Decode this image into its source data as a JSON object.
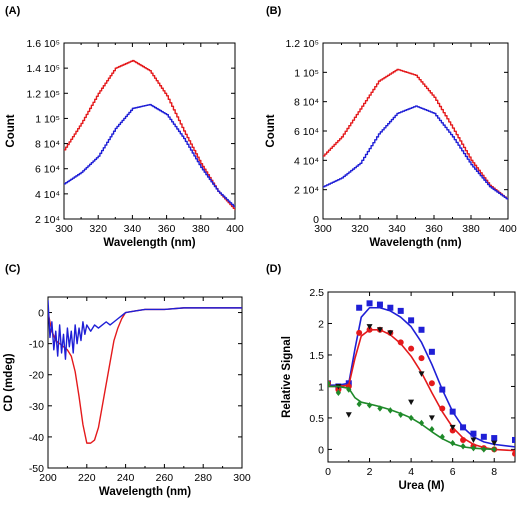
{
  "chart_data": [
    {
      "panel": "(A)",
      "type": "line",
      "xlabel": "Wavelength (nm)",
      "ylabel": "Count",
      "xlim": [
        300,
        400
      ],
      "ylim": [
        20000,
        160000
      ],
      "x_ticks": [
        300,
        320,
        340,
        360,
        380,
        400
      ],
      "y_ticks": [
        {
          "value": 20000,
          "label": "2 10⁴"
        },
        {
          "value": 40000,
          "label": "4 10⁴"
        },
        {
          "value": 60000,
          "label": "6 10⁴"
        },
        {
          "value": 80000,
          "label": "8 10⁴"
        },
        {
          "value": 100000,
          "label": "1 10⁵"
        },
        {
          "value": 120000,
          "label": "1.2 10⁵"
        },
        {
          "value": 140000,
          "label": "1.4 10⁵"
        },
        {
          "value": 160000,
          "label": "1.6 10⁵"
        }
      ],
      "grid": false,
      "series": [
        {
          "color": "#e41a1c",
          "x": [
            300,
            310,
            320,
            330,
            340,
            350,
            360,
            370,
            380,
            390,
            400
          ],
          "y": [
            75000,
            96000,
            120000,
            140000,
            146000,
            138000,
            118000,
            90000,
            64000,
            42000,
            27000
          ]
        },
        {
          "color": "#1f1fd6",
          "x": [
            300,
            310,
            320,
            330,
            340,
            350,
            360,
            370,
            380,
            390,
            400
          ],
          "y": [
            48000,
            57000,
            70000,
            92000,
            108000,
            111000,
            103000,
            84000,
            61000,
            42000,
            29000
          ]
        }
      ]
    },
    {
      "panel": "(B)",
      "type": "line",
      "xlabel": "Wavelength (nm)",
      "ylabel": "Count",
      "xlim": [
        300,
        400
      ],
      "ylim": [
        0,
        120000
      ],
      "x_ticks": [
        300,
        320,
        340,
        360,
        380,
        400
      ],
      "y_ticks": [
        {
          "value": 0,
          "label": "0"
        },
        {
          "value": 20000,
          "label": "2 10⁴"
        },
        {
          "value": 40000,
          "label": "4 10⁴"
        },
        {
          "value": 60000,
          "label": "6 10⁴"
        },
        {
          "value": 80000,
          "label": "8 10⁴"
        },
        {
          "value": 100000,
          "label": "1 10⁵"
        },
        {
          "value": 120000,
          "label": "1.2 10⁵"
        }
      ],
      "grid": false,
      "series": [
        {
          "color": "#e41a1c",
          "x": [
            300,
            310,
            320,
            330,
            340,
            350,
            360,
            370,
            380,
            390,
            400
          ],
          "y": [
            43000,
            56000,
            75000,
            94000,
            102000,
            98000,
            83000,
            62000,
            40000,
            23000,
            13000
          ]
        },
        {
          "color": "#1f1fd6",
          "x": [
            300,
            310,
            320,
            330,
            340,
            350,
            360,
            370,
            380,
            390,
            400
          ],
          "y": [
            22000,
            28000,
            38000,
            58000,
            72000,
            77000,
            72000,
            56000,
            37000,
            22000,
            13000
          ]
        }
      ]
    },
    {
      "panel": "(C)",
      "type": "line",
      "xlabel": "Wavelength (nm)",
      "ylabel": "CD (mdeg)",
      "xlim": [
        200,
        300
      ],
      "ylim": [
        -50,
        5
      ],
      "x_ticks": [
        200,
        220,
        240,
        260,
        280,
        300
      ],
      "y_ticks": [
        {
          "value": 0,
          "label": "0"
        },
        {
          "value": -10,
          "label": "-10"
        },
        {
          "value": -20,
          "label": "-20"
        },
        {
          "value": -30,
          "label": "-30"
        },
        {
          "value": -40,
          "label": "-40"
        },
        {
          "value": -50,
          "label": "-50"
        }
      ],
      "grid": false,
      "series": [
        {
          "color": "#e41a1c",
          "x": [
            200,
            202,
            204,
            206,
            208,
            210,
            212,
            214,
            216,
            218,
            220,
            222,
            224,
            226,
            228,
            230,
            232,
            234,
            236,
            238,
            240,
            245,
            250,
            260,
            270,
            280,
            290,
            300
          ],
          "y": [
            0,
            -6,
            -9,
            -10,
            -11,
            -12,
            -14,
            -19,
            -27,
            -36,
            -42,
            -42,
            -41,
            -37,
            -30,
            -23,
            -16,
            -9,
            -5,
            -2,
            0,
            0.5,
            1,
            1,
            1.5,
            1.5,
            1.5,
            1.5
          ]
        },
        {
          "color": "#1f1fd6",
          "x": [
            200,
            201,
            202,
            203,
            204,
            205,
            206,
            207,
            208,
            209,
            210,
            211,
            212,
            213,
            214,
            215,
            216,
            217,
            218,
            219,
            220,
            222,
            224,
            226,
            228,
            230,
            232,
            234,
            236,
            238,
            240,
            245,
            250,
            260,
            270,
            280,
            290,
            300
          ],
          "y": [
            4,
            -8,
            -3,
            -12,
            -6,
            -14,
            -4,
            -13,
            -7,
            -15,
            -5,
            -11,
            -6,
            -13,
            -4,
            -10,
            -5,
            -9,
            -3,
            -7,
            -4,
            -6,
            -4,
            -5,
            -4,
            -3,
            -4,
            -3,
            -2,
            -1,
            0,
            0.5,
            1,
            1,
            1.5,
            1.5,
            1.5,
            1.5
          ]
        }
      ]
    },
    {
      "panel": "(D)",
      "type": "scatter",
      "xlabel": "Urea (M)",
      "ylabel": "Relative Signal",
      "xlim": [
        0,
        9
      ],
      "ylim": [
        -0.2,
        2.5
      ],
      "x_ticks": [
        0,
        2,
        4,
        6,
        8
      ],
      "y_ticks": [
        {
          "value": 0,
          "label": "0"
        },
        {
          "value": 0.5,
          "label": "0.5"
        },
        {
          "value": 1,
          "label": "1"
        },
        {
          "value": 1.5,
          "label": "1.5"
        },
        {
          "value": 2,
          "label": "2"
        },
        {
          "value": 2.5,
          "label": "2.5"
        }
      ],
      "grid": false,
      "series": [
        {
          "color": "#1f1fd6",
          "marker": "square",
          "x": [
            0,
            0.5,
            1,
            1.5,
            2,
            2.5,
            3,
            3.5,
            4,
            4.5,
            5,
            5.5,
            6,
            6.5,
            7,
            7.5,
            8,
            9
          ],
          "y": [
            1.05,
            1.0,
            1.05,
            2.25,
            2.32,
            2.3,
            2.25,
            2.2,
            2.05,
            1.9,
            1.55,
            0.95,
            0.6,
            0.35,
            0.25,
            0.2,
            0.18,
            0.15
          ],
          "fit_x": [
            0,
            0.5,
            1,
            1.3,
            1.6,
            2,
            2.5,
            3,
            3.5,
            4,
            4.5,
            5,
            5.5,
            6,
            6.5,
            7,
            7.5,
            8,
            9
          ],
          "fit_y": [
            1.02,
            1.02,
            1.05,
            1.6,
            2.1,
            2.25,
            2.25,
            2.2,
            2.1,
            1.95,
            1.7,
            1.35,
            0.95,
            0.6,
            0.35,
            0.2,
            0.12,
            0.08,
            0.04
          ]
        },
        {
          "color": "#e41a1c",
          "marker": "circle",
          "x": [
            0,
            0.5,
            1,
            1.5,
            2,
            2.5,
            3,
            3.5,
            4,
            4.5,
            5,
            5.5,
            6,
            6.5,
            7,
            7.5,
            8,
            9
          ],
          "y": [
            1.05,
            0.95,
            1.0,
            1.85,
            1.9,
            1.9,
            1.85,
            1.7,
            1.6,
            1.45,
            1.05,
            0.65,
            0.3,
            0.15,
            0.05,
            0.02,
            0.0,
            -0.07
          ],
          "fit_x": [
            0,
            0.5,
            1,
            1.3,
            1.6,
            2,
            2.5,
            3,
            3.5,
            4,
            4.5,
            5,
            5.5,
            6,
            6.5,
            7,
            7.5,
            8,
            9
          ],
          "fit_y": [
            1.0,
            1.0,
            1.02,
            1.45,
            1.8,
            1.9,
            1.9,
            1.82,
            1.68,
            1.48,
            1.22,
            0.9,
            0.6,
            0.35,
            0.18,
            0.08,
            0.03,
            0.0,
            -0.02
          ]
        },
        {
          "color": "#111111",
          "marker": "triangle-down",
          "x": [
            0.5,
            1,
            2,
            2.5,
            3,
            4,
            4.5,
            5,
            6,
            7,
            8
          ],
          "y": [
            1.0,
            0.55,
            1.95,
            1.9,
            1.85,
            0.75,
            1.2,
            0.5,
            0.35,
            0.15,
            0.1
          ]
        },
        {
          "color": "#1f8a2a",
          "marker": "diamond",
          "x": [
            0,
            0.5,
            1,
            1.5,
            2,
            2.5,
            3,
            3.5,
            4,
            4.5,
            5,
            5.5,
            6,
            6.5,
            7,
            7.5,
            8
          ],
          "y": [
            1.05,
            0.9,
            0.95,
            0.72,
            0.7,
            0.65,
            0.62,
            0.55,
            0.5,
            0.42,
            0.32,
            0.2,
            0.1,
            0.05,
            0.02,
            0.0,
            0.0
          ],
          "fit_x": [
            0,
            0.5,
            1,
            1.3,
            1.6,
            2,
            2.5,
            3,
            3.5,
            4,
            4.5,
            5,
            5.5,
            6,
            6.5,
            7,
            7.5,
            8
          ],
          "fit_y": [
            1.0,
            1.0,
            0.97,
            0.82,
            0.75,
            0.72,
            0.68,
            0.63,
            0.57,
            0.5,
            0.4,
            0.28,
            0.17,
            0.09,
            0.04,
            0.02,
            0.01,
            0.0
          ]
        }
      ]
    }
  ]
}
